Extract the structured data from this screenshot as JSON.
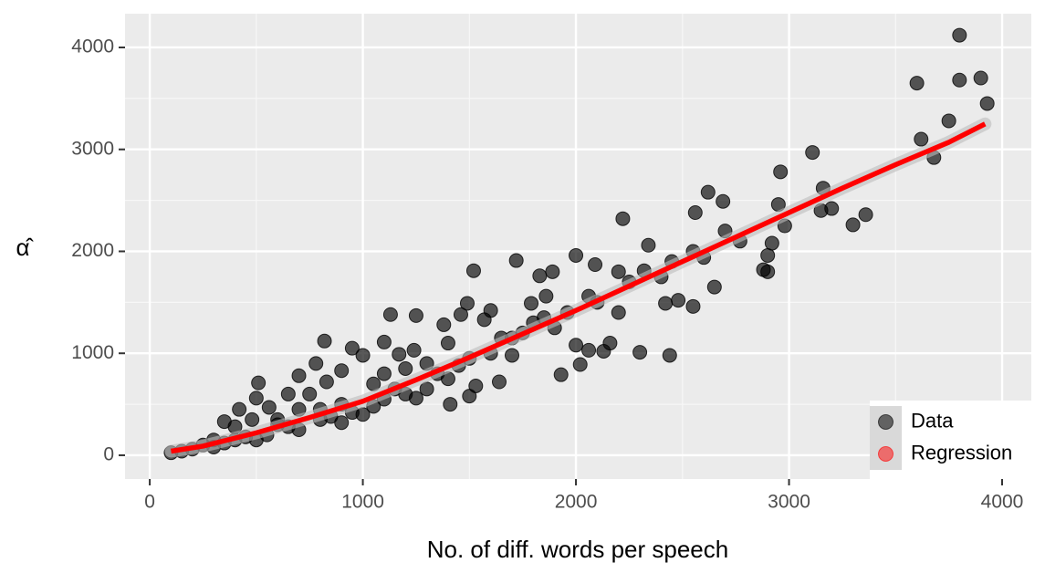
{
  "chart_data": {
    "type": "scatter",
    "x_label": "No. of diff. words per speech",
    "y_label": "α̂",
    "xlim": [
      -116,
      4137
    ],
    "ylim": [
      -233,
      4331
    ],
    "xticks": [
      0,
      1000,
      2000,
      3000,
      4000
    ],
    "yticks": [
      0,
      1000,
      2000,
      3000,
      4000
    ],
    "grid": true,
    "minor_grid": true,
    "legend": "bottom-right",
    "series": [
      {
        "name": "Data",
        "color": "#000000",
        "x": [
          3800,
          3600,
          3800,
          3900,
          3930,
          3750,
          3620,
          3680,
          3110,
          2960,
          2620,
          2690,
          2560,
          2220,
          3160,
          3200,
          3150,
          3300,
          3360,
          2950,
          2980,
          2900,
          2920,
          2900,
          2880,
          2770,
          2650,
          2600,
          2450,
          2340,
          2440,
          2420,
          2550,
          2480,
          2320,
          2200,
          2090,
          2000,
          2060,
          1930,
          2020,
          2060,
          2130,
          2160,
          2300,
          2000,
          1720,
          1830,
          1520,
          1890,
          1860,
          1960,
          1790,
          1490,
          1250,
          1130,
          1100,
          1170,
          1240,
          1380,
          1460,
          1570,
          1530,
          1500,
          1640,
          1700,
          1410,
          1300,
          1200,
          1000,
          950,
          820,
          780,
          830,
          900,
          700,
          650,
          510,
          500,
          420,
          560,
          480,
          350,
          400,
          600,
          750,
          900,
          1050,
          1100,
          950,
          850,
          700,
          600,
          1000,
          1150,
          1300,
          1450,
          1600,
          1700,
          1800,
          1400,
          1250,
          200,
          150,
          100,
          250,
          300,
          350,
          450,
          550,
          650,
          800,
          900,
          1050,
          1200,
          1350,
          1500,
          1650,
          1750,
          2100,
          2200,
          2250,
          2400,
          2550,
          2700,
          1900,
          1850,
          1600,
          1400,
          500,
          400,
          700,
          800,
          300,
          1100
        ],
        "values": [
          4120,
          3650,
          3680,
          3700,
          3450,
          3280,
          3100,
          2920,
          2970,
          2780,
          2580,
          2490,
          2380,
          2320,
          2620,
          2420,
          2400,
          2260,
          2360,
          2460,
          2250,
          1960,
          2080,
          1800,
          1820,
          2100,
          1650,
          1940,
          1900,
          2060,
          980,
          1490,
          1460,
          1520,
          1810,
          1800,
          1870,
          1960,
          1560,
          790,
          890,
          1030,
          1020,
          1100,
          1010,
          1080,
          1910,
          1760,
          1810,
          1800,
          1560,
          1400,
          1490,
          1490,
          1370,
          1380,
          1110,
          990,
          1030,
          1280,
          1380,
          1330,
          680,
          580,
          720,
          980,
          500,
          900,
          850,
          980,
          1050,
          1120,
          900,
          720,
          830,
          780,
          600,
          710,
          560,
          450,
          470,
          350,
          330,
          280,
          350,
          600,
          500,
          700,
          550,
          420,
          380,
          450,
          300,
          400,
          650,
          650,
          880,
          1000,
          1150,
          1300,
          750,
          560,
          60,
          40,
          25,
          100,
          150,
          120,
          180,
          200,
          280,
          350,
          320,
          480,
          600,
          800,
          950,
          1150,
          1200,
          1500,
          1400,
          1700,
          1750,
          2000,
          2200,
          1250,
          1350,
          1420,
          1100,
          150,
          150,
          250,
          450,
          80,
          800
        ]
      },
      {
        "name": "Regression",
        "color": "#ff0000",
        "x": [
          100,
          250,
          500,
          750,
          1000,
          1250,
          1500,
          1750,
          2000,
          2250,
          2500,
          2750,
          3000,
          3250,
          3500,
          3750,
          3920
        ],
        "values": [
          40,
          90,
          220,
          370,
          530,
          740,
          960,
          1190,
          1420,
          1660,
          1900,
          2140,
          2380,
          2620,
          2850,
          3070,
          3250
        ]
      }
    ]
  }
}
